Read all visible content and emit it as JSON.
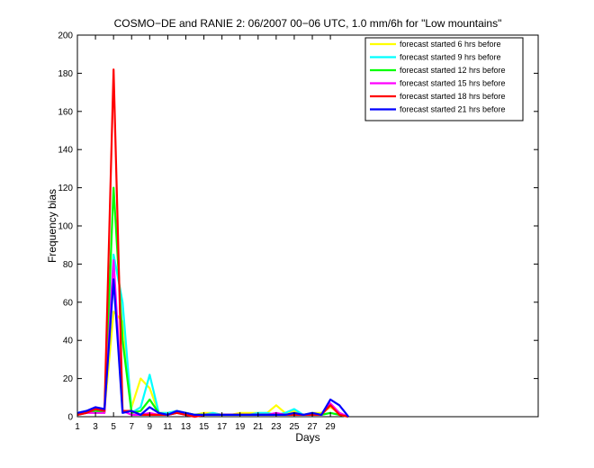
{
  "chart_data": {
    "type": "line",
    "title": "COSMO−DE and RANIE 2: 06/2007 00−06 UTC, 1.0 mm/6h for \"Low mountains\"",
    "xlabel": "Days",
    "ylabel": "Frequency bias",
    "xlim": [
      1,
      52
    ],
    "ylim": [
      0,
      200
    ],
    "x_ticks": [
      1,
      3,
      5,
      7,
      9,
      11,
      13,
      15,
      17,
      19,
      21,
      23,
      25,
      27,
      29
    ],
    "y_ticks": [
      0,
      20,
      40,
      60,
      80,
      100,
      120,
      140,
      160,
      180,
      200
    ],
    "grid": false,
    "legend_position": "top-right",
    "x": [
      1,
      2,
      3,
      4,
      5,
      6,
      7,
      8,
      9,
      10,
      11,
      12,
      13,
      14,
      15,
      16,
      17,
      18,
      19,
      20,
      21,
      22,
      23,
      24,
      25,
      26,
      27,
      28,
      29,
      30,
      31
    ],
    "series": [
      {
        "name": "forecast started 6 hrs before",
        "color": "#ffff00",
        "values": [
          1,
          2,
          4,
          3,
          55,
          50,
          5,
          20,
          15,
          2,
          2,
          3,
          2,
          1,
          2,
          2,
          1,
          1,
          2,
          2,
          2,
          2,
          6,
          2,
          3,
          1,
          2,
          2,
          5,
          2,
          0
        ]
      },
      {
        "name": "forecast started 9 hrs before",
        "color": "#00ffff",
        "values": [
          2,
          3,
          4,
          3,
          85,
          60,
          2,
          5,
          22,
          2,
          2,
          3,
          2,
          1,
          1,
          2,
          1,
          1,
          1,
          1,
          2,
          2,
          1,
          2,
          4,
          1,
          2,
          1,
          2,
          1,
          0
        ]
      },
      {
        "name": "forecast started 12 hrs before",
        "color": "#00ff00",
        "values": [
          1,
          2,
          3,
          2,
          120,
          40,
          2,
          3,
          9,
          2,
          1,
          2,
          2,
          1,
          1,
          1,
          1,
          1,
          1,
          1,
          1,
          1,
          1,
          1,
          1,
          1,
          1,
          1,
          2,
          1,
          0
        ]
      },
      {
        "name": "forecast started 15 hrs before",
        "color": "#ff00ff",
        "values": [
          1,
          2,
          2,
          2,
          82,
          3,
          1,
          1,
          2,
          1,
          1,
          2,
          1,
          0,
          1,
          1,
          1,
          1,
          1,
          1,
          1,
          1,
          2,
          1,
          1,
          1,
          1,
          1,
          7,
          2,
          0
        ]
      },
      {
        "name": "forecast started 18 hrs before",
        "color": "#ff0000",
        "values": [
          1,
          2,
          4,
          3,
          182,
          3,
          3,
          1,
          1,
          1,
          1,
          2,
          1,
          0,
          1,
          1,
          1,
          1,
          1,
          1,
          1,
          1,
          1,
          1,
          1,
          1,
          1,
          1,
          6,
          1,
          0
        ]
      },
      {
        "name": "forecast started 21 hrs before",
        "color": "#0000ff",
        "values": [
          2,
          3,
          5,
          4,
          72,
          2,
          3,
          1,
          5,
          2,
          1,
          3,
          2,
          1,
          1,
          1,
          1,
          1,
          1,
          1,
          1,
          1,
          1,
          1,
          2,
          1,
          2,
          1,
          9,
          6,
          0
        ]
      }
    ]
  }
}
